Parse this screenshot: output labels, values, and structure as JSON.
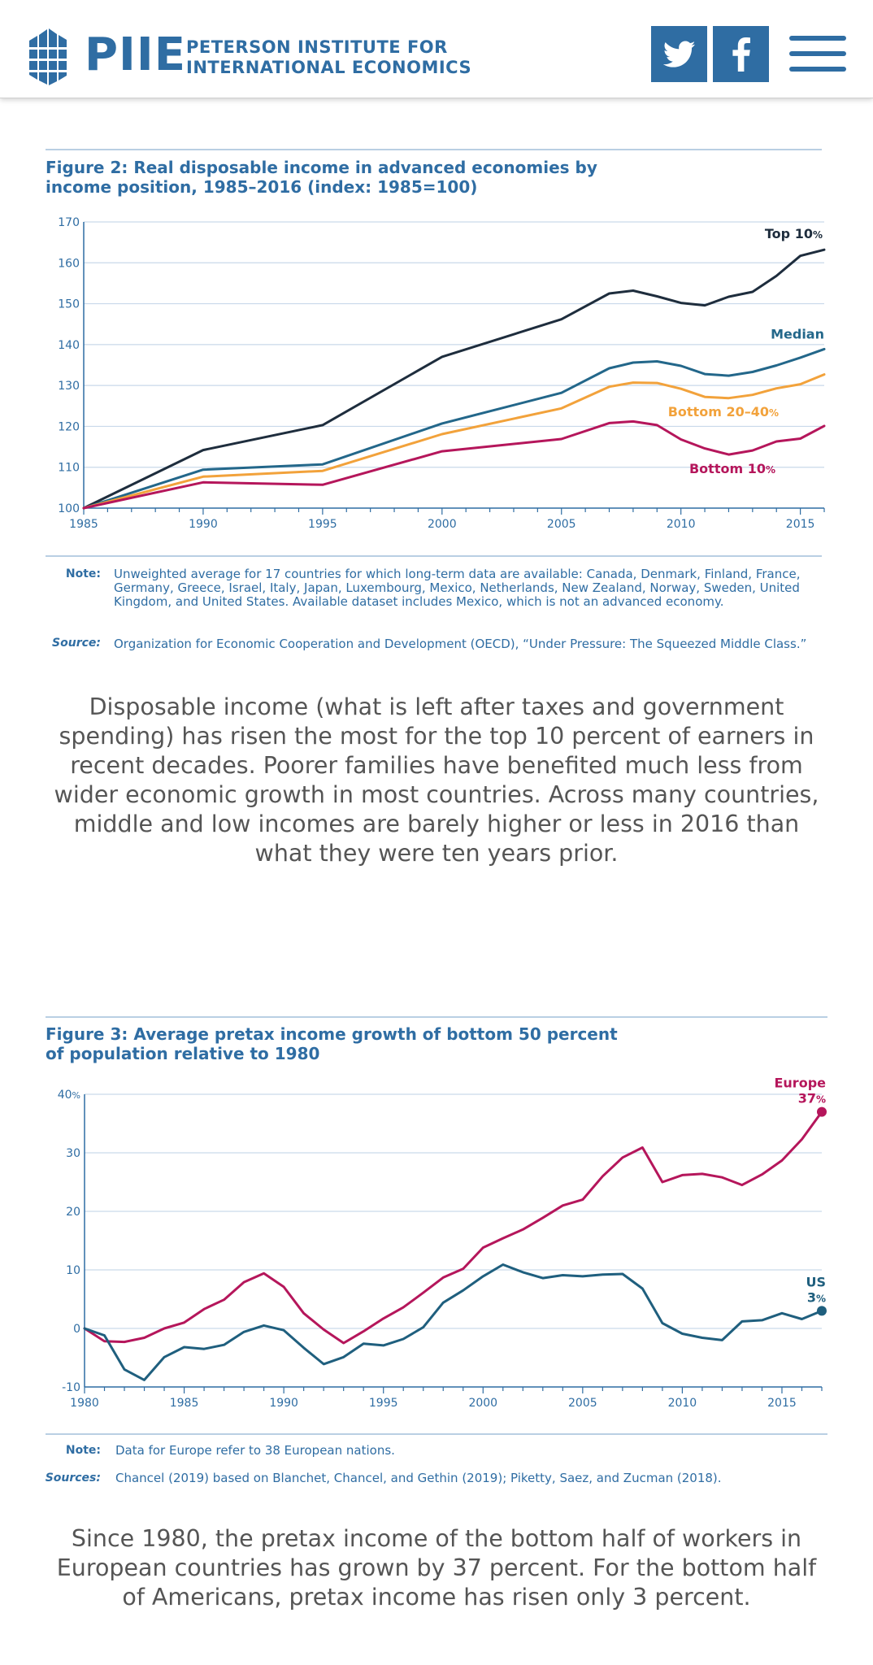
{
  "header": {
    "logo_abbr": "PIIE",
    "logo_name_line1": "PETERSON INSTITUTE FOR",
    "logo_name_line2": "INTERNATIONAL ECONOMICS",
    "twitter_icon": "twitter-bird-icon",
    "facebook_icon": "facebook-f-icon",
    "menu_icon": "hamburger-menu-icon",
    "brand_color": "#2f6da3"
  },
  "figure2": {
    "title_line1": "Figure 2: Real disposable income in advanced economies by",
    "title_line2": "income position, 1985–2016 (index: 1985=100)",
    "note_label": "Note:",
    "note_text": "Unweighted average for 17 countries for which long-term data are available: Canada, Denmark, Finland, France, Germany, Greece, Israel, Italy, Japan, Luxembourg, Mexico, Netherlands, New Zealand, Norway, Sweden, United Kingdom, and United States. Available dataset includes Mexico, which is not an advanced economy.",
    "source_label": "Source:",
    "source_text": "Organization for Economic Cooperation and Development (OECD), “Under Pressure: The Squeezed Middle Class.”"
  },
  "paragraph1": "Disposable income (what is left after taxes and government spending) has risen the most for the top 10 percent of earners in recent decades. Poorer families have benefited much less from wider economic growth in most countries. Across many countries, middle and low incomes are barely higher or less in 2016 than what they were ten years prior.",
  "figure3": {
    "title_line1": "Figure 3: Average pretax income growth of bottom 50 percent",
    "title_line2": "of population relative to 1980",
    "note_label": "Note:",
    "note_text": "Data for Europe refer to 38 European nations.",
    "source_label": "Sources:",
    "source_text": "Chancel (2019) based on Blanchet, Chancel, and Gethin (2019); Piketty, Saez, and Zucman (2018)."
  },
  "paragraph2": "Since 1980, the pretax income of the bottom half of workers in European countries has grown by 37 percent. For the bottom half of Americans, pretax income has risen only 3 percent.",
  "chart_data": [
    {
      "type": "line",
      "title": "Figure 2: Real disposable income in advanced economies by income position, 1985–2016 (index: 1985=100)",
      "xlim": [
        1985,
        2016
      ],
      "ylim": [
        100,
        170
      ],
      "yticks": [
        100,
        110,
        120,
        130,
        140,
        150,
        160,
        170
      ],
      "yticklabels": [
        "100",
        "110",
        "120",
        "130",
        "140",
        "150",
        "160",
        "170"
      ],
      "xticks": [
        1985,
        1990,
        1995,
        2000,
        2005,
        2010,
        2015
      ],
      "xticklabels": [
        "1985",
        "1990",
        "1995",
        "2000",
        "2005",
        "2010",
        "2015"
      ],
      "grid": true,
      "series": [
        {
          "name": "Top 10",
          "label_suffix": "%",
          "color": "#1e2d3d",
          "x": [
            1985,
            1990,
            1995,
            2000,
            2005,
            2007,
            2008,
            2009,
            2010,
            2011,
            2012,
            2013,
            2014,
            2015,
            2016
          ],
          "values": [
            100,
            114.2,
            120.3,
            137,
            146.2,
            152.5,
            153.2,
            151.8,
            150.2,
            149.6,
            151.7,
            152.9,
            156.8,
            161.7,
            163.2
          ]
        },
        {
          "name": "Median",
          "label_suffix": "",
          "color": "#23678a",
          "x": [
            1985,
            1990,
            1995,
            2000,
            2005,
            2007,
            2008,
            2009,
            2010,
            2011,
            2012,
            2013,
            2014,
            2015,
            2016
          ],
          "values": [
            100,
            109.4,
            110.7,
            120.7,
            128.2,
            134.2,
            135.6,
            135.9,
            134.8,
            132.8,
            132.4,
            133.3,
            134.9,
            136.8,
            138.9
          ]
        },
        {
          "name": "Bottom 20–40",
          "label_suffix": "%",
          "color": "#f2a23b",
          "x": [
            1985,
            1990,
            1995,
            2000,
            2005,
            2007,
            2008,
            2009,
            2010,
            2011,
            2012,
            2013,
            2014,
            2015,
            2016
          ],
          "values": [
            100,
            107.7,
            109.1,
            118.1,
            124.4,
            129.7,
            130.7,
            130.6,
            129.2,
            127.2,
            126.9,
            127.7,
            129.3,
            130.3,
            132.7
          ]
        },
        {
          "name": "Bottom 10",
          "label_suffix": "%",
          "color": "#b5165b",
          "x": [
            1985,
            1990,
            1995,
            2000,
            2005,
            2007,
            2008,
            2009,
            2010,
            2011,
            2012,
            2013,
            2014,
            2015,
            2016
          ],
          "values": [
            100,
            106.3,
            105.7,
            113.9,
            116.9,
            120.8,
            121.2,
            120.3,
            116.8,
            114.6,
            113.1,
            114.1,
            116.3,
            117,
            120.1
          ]
        }
      ]
    },
    {
      "type": "line",
      "title": "Figure 3: Average pretax income growth of bottom 50 percent of population relative to 1980",
      "xlim": [
        1980,
        2017
      ],
      "ylim": [
        -10,
        40
      ],
      "yticks": [
        -10,
        0,
        10,
        20,
        30,
        40
      ],
      "yticklabels": [
        "-10",
        "0",
        "10",
        "20",
        "30",
        "40"
      ],
      "ytick_top_suffix": "%",
      "xticks": [
        1980,
        1985,
        1990,
        1995,
        2000,
        2005,
        2010,
        2015
      ],
      "xticklabels": [
        "1980",
        "1985",
        "1990",
        "1995",
        "2000",
        "2005",
        "2010",
        "2015"
      ],
      "grid": true,
      "series": [
        {
          "name": "Europe",
          "end_label": "37",
          "label_suffix": "%",
          "color": "#b5165b",
          "x": [
            1980,
            1981,
            1982,
            1983,
            1984,
            1985,
            1986,
            1987,
            1988,
            1989,
            1990,
            1991,
            1992,
            1993,
            1994,
            1995,
            1996,
            1997,
            1998,
            1999,
            2000,
            2001,
            2002,
            2003,
            2004,
            2005,
            2006,
            2007,
            2008,
            2009,
            2010,
            2011,
            2012,
            2013,
            2014,
            2015,
            2016,
            2017
          ],
          "values": [
            0,
            -2.2,
            -2.3,
            -1.6,
            0,
            1,
            3.3,
            4.9,
            7.9,
            9.4,
            7.1,
            2.6,
            -0.2,
            -2.5,
            -0.5,
            1.7,
            3.6,
            6.1,
            8.7,
            10.2,
            13.8,
            15.4,
            16.9,
            18.9,
            21,
            22,
            26,
            29.2,
            30.9,
            25,
            26.2,
            26.4,
            25.8,
            24.5,
            26.3,
            28.7,
            32.3,
            37
          ]
        },
        {
          "name": "US",
          "end_label": "3",
          "label_suffix": "%",
          "color": "#1f5f7e",
          "x": [
            1980,
            1981,
            1982,
            1983,
            1984,
            1985,
            1986,
            1987,
            1988,
            1989,
            1990,
            1991,
            1992,
            1993,
            1994,
            1995,
            1996,
            1997,
            1998,
            1999,
            2000,
            2001,
            2002,
            2003,
            2004,
            2005,
            2006,
            2007,
            2008,
            2009,
            2010,
            2011,
            2012,
            2013,
            2014,
            2015,
            2016,
            2017
          ],
          "values": [
            0,
            -1.2,
            -7,
            -8.8,
            -4.9,
            -3.2,
            -3.5,
            -2.8,
            -0.6,
            0.5,
            -0.3,
            -3.3,
            -6.1,
            -4.9,
            -2.6,
            -2.9,
            -1.8,
            0.2,
            4.4,
            6.5,
            8.9,
            10.9,
            9.6,
            8.6,
            9.1,
            8.9,
            9.2,
            9.3,
            6.8,
            0.9,
            -0.9,
            -1.6,
            -2,
            1.2,
            1.4,
            2.6,
            1.6,
            3
          ]
        }
      ]
    }
  ]
}
